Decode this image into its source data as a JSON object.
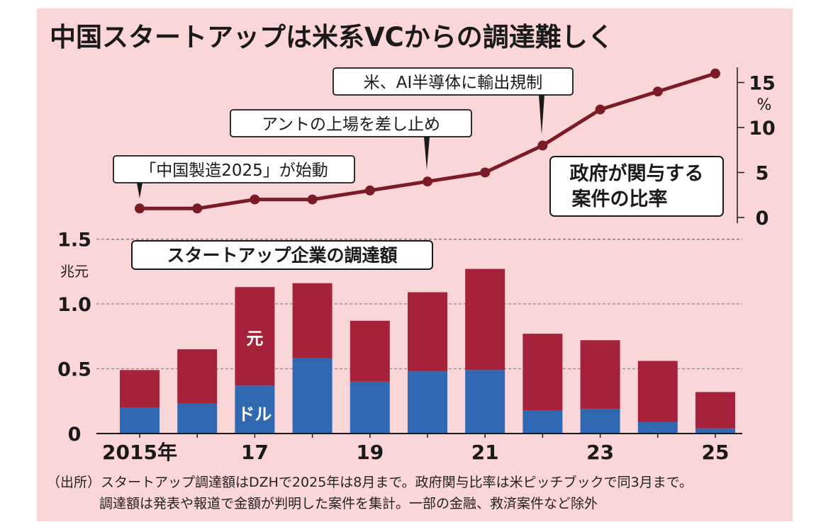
{
  "title": "中国スタートアップは米系VCからの調達難しく",
  "chart_data": [
    {
      "type": "line",
      "title": "政府が関与する案件の比率",
      "title_lines": [
        "政府が関与する",
        "案件の比率"
      ],
      "unit": "%",
      "x": [
        2015,
        2016,
        2017,
        2018,
        2019,
        2020,
        2021,
        2022,
        2023,
        2024,
        2025
      ],
      "values": [
        1,
        1,
        2,
        2,
        3,
        4,
        5,
        8,
        12,
        14,
        16
      ],
      "ylim": [
        0,
        17.5
      ],
      "yticks": [
        0,
        5,
        10,
        15
      ],
      "color": "#7b1c25",
      "annotations": [
        {
          "label": "「中国製造2025」が始動",
          "x": 2015
        },
        {
          "label": "アントの上場を差し止め",
          "x": 2020
        },
        {
          "label": "米、AI半導体に輸出規制",
          "x": 2022
        }
      ]
    },
    {
      "type": "bar",
      "stacked": true,
      "title": "スタートアップ企業の調達額",
      "unit": "兆元",
      "categories": [
        "2015年",
        "16",
        "17",
        "18",
        "19",
        "20",
        "21",
        "22",
        "23",
        "24",
        "25"
      ],
      "xtick_labels": [
        "2015年",
        "",
        "17",
        "",
        "19",
        "",
        "21",
        "",
        "23",
        "",
        "25"
      ],
      "series": [
        {
          "name": "ドル",
          "color": "#3068b2",
          "values": [
            0.2,
            0.23,
            0.37,
            0.58,
            0.4,
            0.48,
            0.49,
            0.18,
            0.19,
            0.09,
            0.04
          ]
        },
        {
          "name": "元",
          "color": "#a6223a",
          "values": [
            0.29,
            0.42,
            0.76,
            0.58,
            0.47,
            0.61,
            0.78,
            0.59,
            0.53,
            0.47,
            0.28
          ]
        }
      ],
      "ylim": [
        0,
        1.5
      ],
      "yticks": [
        0,
        0.5,
        1.0,
        1.5
      ],
      "ytick_labels": [
        "0",
        "0.5",
        "1.0",
        "1.5"
      ]
    }
  ],
  "source_line1": "（出所）スタートアップ調達額はDZHで2025年は8月まで。政府関与比率は米ピッチブックで同3月まで。",
  "source_line2": "調達額は発表や報道で金額が判明した案件を集計。一部の金融、救済案件など除外"
}
